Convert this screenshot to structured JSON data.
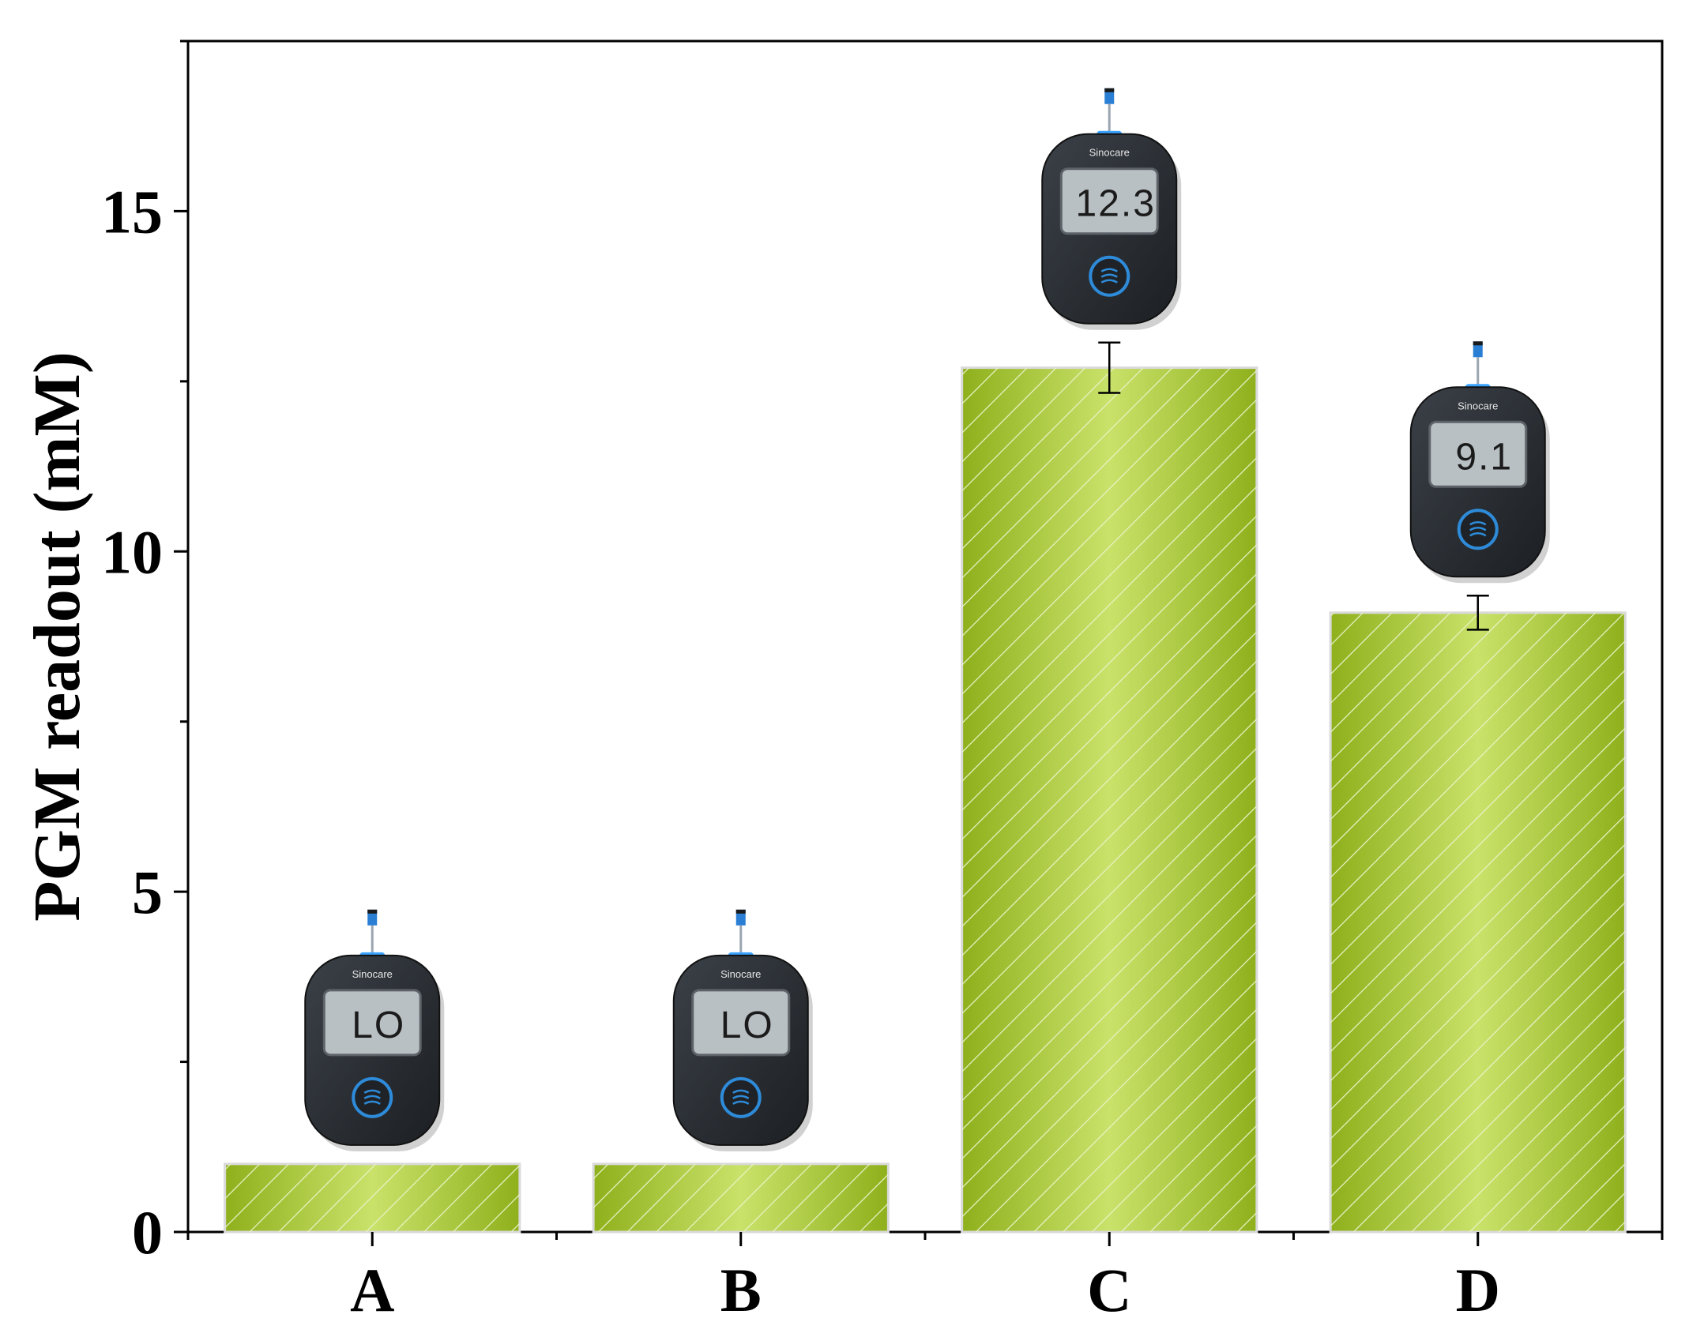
{
  "chart_data": {
    "type": "bar",
    "categories": [
      "A",
      "B",
      "C",
      "D"
    ],
    "values": [
      1.0,
      1.0,
      12.7,
      9.1
    ],
    "errors": [
      0.0,
      0.0,
      0.37,
      0.25
    ],
    "meter_readouts": [
      "LO",
      "LO",
      "12.3",
      "9.1"
    ],
    "meter_brand": "Sinocare",
    "ylabel": "PGM readout (mM)",
    "xlabel": "",
    "ylim": [
      0,
      17.5
    ],
    "yticks": [
      0,
      5,
      10,
      15
    ],
    "grid": false,
    "bar_color": "#9bbb2a",
    "bar_highlight": "#c9e26a",
    "hatch": "diagonal"
  }
}
